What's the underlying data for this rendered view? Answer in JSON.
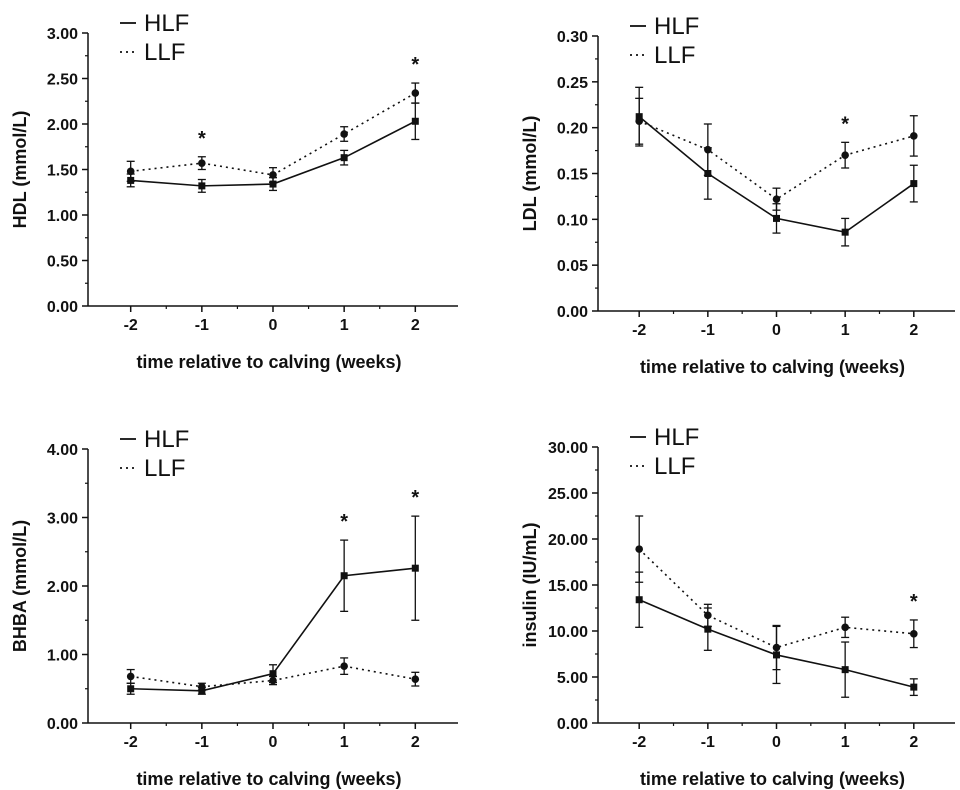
{
  "chart_data": [
    {
      "type": "line",
      "ylabel": "HDL (mmol/L)",
      "xlabel": "time relative to calving (weeks)",
      "x": [
        -2,
        -1,
        0,
        1,
        2
      ],
      "xlim": [
        -2.6,
        2.6
      ],
      "ylim": [
        0,
        3
      ],
      "yticks": [
        0,
        0.5,
        1,
        1.5,
        2,
        2.5,
        3
      ],
      "ytick_labels": [
        "0.00",
        "0.50",
        "1.00",
        "1.50",
        "2.00",
        "2.50",
        "3.00"
      ],
      "series": [
        {
          "name": "HLF",
          "style": "solid",
          "marker": "square",
          "values": [
            1.38,
            1.32,
            1.34,
            1.63,
            2.03
          ],
          "err": [
            0.07,
            0.07,
            0.07,
            0.08,
            0.2
          ]
        },
        {
          "name": "LLF",
          "style": "dotted",
          "marker": "circle",
          "values": [
            1.48,
            1.57,
            1.44,
            1.89,
            2.34
          ],
          "err": [
            0.11,
            0.07,
            0.08,
            0.08,
            0.11
          ]
        }
      ],
      "annotations": [
        {
          "x": -1,
          "text": "*"
        },
        {
          "x": 2,
          "text": "*"
        }
      ],
      "legend_loc": "top-left"
    },
    {
      "type": "line",
      "ylabel": "LDL (mmol/L)",
      "xlabel": "time relative to calving (weeks)",
      "x": [
        -2,
        -1,
        0,
        1,
        2
      ],
      "xlim": [
        -2.6,
        2.6
      ],
      "ylim": [
        0,
        0.3
      ],
      "yticks": [
        0,
        0.05,
        0.1,
        0.15,
        0.2,
        0.25,
        0.3
      ],
      "ytick_labels": [
        "0.00",
        "0.05",
        "0.10",
        "0.15",
        "0.20",
        "0.25",
        "0.30"
      ],
      "series": [
        {
          "name": "HLF",
          "style": "solid",
          "marker": "square",
          "values": [
            0.212,
            0.15,
            0.101,
            0.086,
            0.139
          ],
          "err": [
            0.032,
            0.028,
            0.016,
            0.015,
            0.02
          ]
        },
        {
          "name": "LLF",
          "style": "dotted",
          "marker": "circle",
          "values": [
            0.207,
            0.176,
            0.122,
            0.17,
            0.191
          ],
          "err": [
            0.025,
            0.028,
            0.012,
            0.014,
            0.022
          ]
        }
      ],
      "annotations": [
        {
          "x": 1,
          "text": "*"
        }
      ],
      "legend_loc": "top-left"
    },
    {
      "type": "line",
      "ylabel": "BHBA (mmol/L)",
      "xlabel": "time relative to calving (weeks)",
      "x": [
        -2,
        -1,
        0,
        1,
        2
      ],
      "xlim": [
        -2.6,
        2.6
      ],
      "ylim": [
        0,
        4
      ],
      "yticks": [
        0,
        1,
        2,
        3,
        4
      ],
      "ytick_labels": [
        "0.00",
        "1.00",
        "2.00",
        "3.00",
        "4.00"
      ],
      "series": [
        {
          "name": "HLF",
          "style": "solid",
          "marker": "square",
          "values": [
            0.5,
            0.47,
            0.72,
            2.15,
            2.26
          ],
          "err": [
            0.08,
            0.05,
            0.13,
            0.52,
            0.76
          ]
        },
        {
          "name": "LLF",
          "style": "dotted",
          "marker": "circle",
          "values": [
            0.68,
            0.53,
            0.62,
            0.83,
            0.64
          ],
          "err": [
            0.1,
            0.05,
            0.06,
            0.12,
            0.1
          ]
        }
      ],
      "annotations": [
        {
          "x": 1,
          "text": "*"
        },
        {
          "x": 2,
          "text": "*"
        }
      ],
      "legend_loc": "top-left"
    },
    {
      "type": "line",
      "ylabel": "insulin (IU/mL)",
      "xlabel": "time relative to calving (weeks)",
      "x": [
        -2,
        -1,
        0,
        1,
        2
      ],
      "xlim": [
        -2.6,
        2.6
      ],
      "ylim": [
        0,
        30
      ],
      "yticks": [
        0,
        5,
        10,
        15,
        20,
        25,
        30
      ],
      "ytick_labels": [
        "0.00",
        "5.00",
        "10.00",
        "15.00",
        "20.00",
        "25.00",
        "30.00"
      ],
      "series": [
        {
          "name": "HLF",
          "style": "solid",
          "marker": "square",
          "values": [
            13.4,
            10.2,
            7.4,
            5.8,
            3.9
          ],
          "err": [
            3.0,
            2.3,
            3.1,
            3.0,
            0.9
          ]
        },
        {
          "name": "LLF",
          "style": "dotted",
          "marker": "circle",
          "values": [
            18.9,
            11.7,
            8.2,
            10.4,
            9.7
          ],
          "err": [
            3.6,
            1.2,
            2.4,
            1.1,
            1.5
          ]
        }
      ],
      "annotations": [
        {
          "x": 2,
          "text": "*"
        }
      ],
      "legend_loc": "top-left"
    }
  ]
}
